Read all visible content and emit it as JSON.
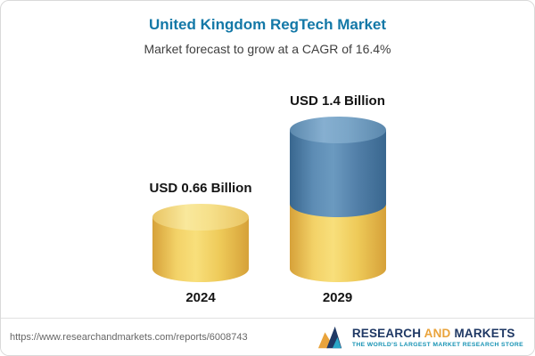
{
  "chart_data": {
    "type": "bar",
    "title": "United Kingdom RegTech Market",
    "subtitle": "Market forecast to grow at a CAGR of 16.4%",
    "categories": [
      "2024",
      "2029"
    ],
    "values": [
      0.66,
      1.4
    ],
    "value_labels": [
      "USD 0.66 Billion",
      "USD 1.4 Billion"
    ],
    "unit": "USD Billion",
    "cagr": "16.4%",
    "legend_position": "none",
    "grid": false,
    "colors": {
      "base_segment": "#f2cf63",
      "growth_segment": "#527fa8"
    }
  },
  "footer": {
    "source_url": "https://www.researchandmarkets.com/reports/6008743",
    "logo": {
      "word1": "RESEARCH",
      "word2": "AND",
      "word3": "MARKETS",
      "tagline": "THE WORLD'S LARGEST MARKET RESEARCH STORE",
      "mark": "research-and-markets-logo-mark"
    }
  }
}
